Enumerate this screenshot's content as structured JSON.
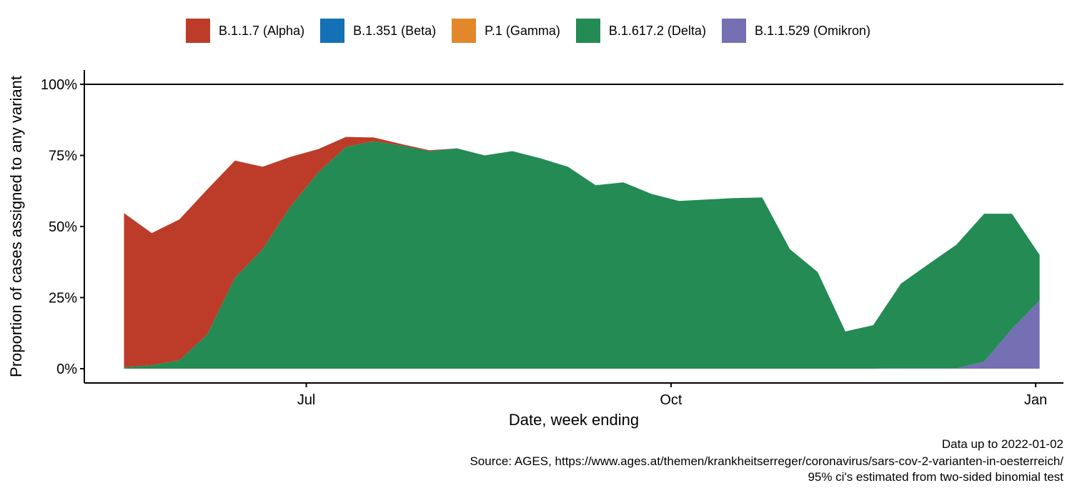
{
  "chart_data": {
    "type": "area",
    "stacked": true,
    "title": "",
    "xlabel": "Date, week ending",
    "ylabel": "Proportion of cases assigned to any variant",
    "ylim": [
      0,
      1
    ],
    "y_ticks": [
      0,
      0.25,
      0.5,
      0.75,
      1.0
    ],
    "y_tick_labels": [
      "0%",
      "25%",
      "50%",
      "75%",
      "100%"
    ],
    "xlim": [
      "2021-05-06",
      "2022-01-08"
    ],
    "x_ticks": [
      "2021-07-01",
      "2021-10-01",
      "2022-01-01"
    ],
    "x_tick_labels": [
      "Jul",
      "Oct",
      "Jan"
    ],
    "hline": 1.0,
    "grid": false,
    "legend_position": "top",
    "x": [
      "2021-05-16",
      "2021-05-23",
      "2021-05-30",
      "2021-06-06",
      "2021-06-13",
      "2021-06-20",
      "2021-06-27",
      "2021-07-04",
      "2021-07-11",
      "2021-07-18",
      "2021-07-25",
      "2021-08-01",
      "2021-08-08",
      "2021-08-15",
      "2021-08-22",
      "2021-08-29",
      "2021-09-05",
      "2021-09-12",
      "2021-09-19",
      "2021-09-26",
      "2021-10-03",
      "2021-10-10",
      "2021-10-17",
      "2021-10-24",
      "2021-10-31",
      "2021-11-07",
      "2021-11-14",
      "2021-11-21",
      "2021-11-28",
      "2021-12-05",
      "2021-12-12",
      "2021-12-19",
      "2021-12-26",
      "2022-01-02"
    ],
    "series": [
      {
        "name": "B.1.1.529 (Omikron)",
        "color": "#7570b3",
        "values": [
          0,
          0,
          0,
          0,
          0,
          0,
          0,
          0,
          0,
          0,
          0,
          0,
          0,
          0,
          0,
          0,
          0,
          0,
          0,
          0,
          0,
          0,
          0,
          0,
          0,
          0,
          0,
          0,
          0.001,
          0.001,
          0.001,
          0.025,
          0.14,
          0.24
        ]
      },
      {
        "name": "B.1.617.2 (Delta)",
        "color": "#238b53",
        "values": [
          0.005,
          0.012,
          0.03,
          0.12,
          0.32,
          0.42,
          0.57,
          0.69,
          0.78,
          0.8,
          0.785,
          0.765,
          0.775,
          0.75,
          0.765,
          0.74,
          0.71,
          0.645,
          0.655,
          0.615,
          0.59,
          0.595,
          0.6,
          0.602,
          0.42,
          0.34,
          0.131,
          0.153,
          0.298,
          0.367,
          0.435,
          0.52,
          0.405,
          0.16
        ]
      },
      {
        "name": "P.1 (Gamma)",
        "color": "#e2872a",
        "values": [
          0,
          0,
          0,
          0,
          0,
          0,
          0,
          0,
          0,
          0,
          0,
          0,
          0,
          0,
          0,
          0,
          0,
          0,
          0,
          0,
          0,
          0,
          0,
          0,
          0,
          0,
          0,
          0,
          0,
          0,
          0,
          0,
          0,
          0
        ]
      },
      {
        "name": "B.1.351 (Beta)",
        "color": "#1471b5",
        "values": [
          0,
          0,
          0,
          0,
          0,
          0,
          0,
          0,
          0,
          0,
          0,
          0,
          0,
          0,
          0,
          0,
          0,
          0,
          0,
          0,
          0,
          0,
          0,
          0,
          0,
          0,
          0,
          0,
          0,
          0,
          0,
          0,
          0,
          0
        ]
      },
      {
        "name": "B.1.1.7 (Alpha)",
        "color": "#bc3c29",
        "values": [
          0.542,
          0.465,
          0.495,
          0.51,
          0.412,
          0.29,
          0.175,
          0.082,
          0.035,
          0.013,
          0.005,
          0.003,
          0,
          0,
          0,
          0,
          0,
          0,
          0,
          0,
          0,
          0,
          0,
          0,
          0,
          0,
          0,
          0,
          0,
          0,
          0,
          0,
          0,
          0
        ]
      }
    ]
  },
  "legend": [
    {
      "label": "B.1.1.7 (Alpha)",
      "color": "#bc3c29"
    },
    {
      "label": "B.1.351 (Beta)",
      "color": "#1471b5"
    },
    {
      "label": "P.1 (Gamma)",
      "color": "#e2872a"
    },
    {
      "label": "B.1.617.2 (Delta)",
      "color": "#238b53"
    },
    {
      "label": "B.1.1.529 (Omikron)",
      "color": "#7570b3"
    }
  ],
  "caption": {
    "line1": "Data up to 2022-01-02",
    "line2": "Source: AGES, https://www.ages.at/themen/krankheitserreger/coronavirus/sars-cov-2-varianten-in-oesterreich/",
    "line3": "95% ci's estimated from two-sided binomial test"
  }
}
